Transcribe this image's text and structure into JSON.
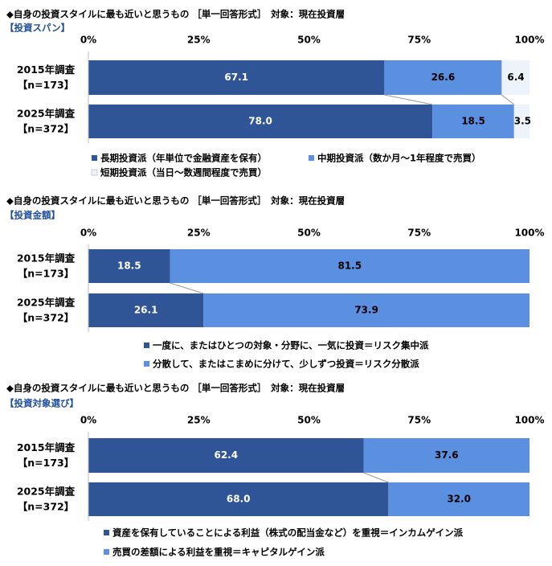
{
  "chart_data": [
    {
      "type": "stacked-bar-h",
      "title": "◆自身の投資スタイルに最も近いと思うもの ［単一回答形式］　対象：現在投資層",
      "subtitle": "【投資スパン】",
      "categories": [
        [
          "2015年調査",
          "【n=173】"
        ],
        [
          "2025年調査",
          "【n=372】"
        ]
      ],
      "xlim": [
        0,
        100
      ],
      "xticks": [
        {
          "value": 0,
          "label": "0%"
        },
        {
          "value": 25,
          "label": "25%"
        },
        {
          "value": 50,
          "label": "50%"
        },
        {
          "value": 75,
          "label": "75%"
        },
        {
          "value": 100,
          "label": "100%"
        }
      ],
      "series": [
        {
          "name": "長期投資派（年単位で金融資産を保有）",
          "color": "#2f5597",
          "values": [
            67.1,
            78.0
          ],
          "value_labels": [
            "67.1",
            "78.0"
          ]
        },
        {
          "name": "中期投資派（数か月～1年程度で売買）",
          "color": "#5b8fe0",
          "values": [
            26.6,
            18.5
          ],
          "value_labels": [
            "26.6",
            "18.5"
          ]
        },
        {
          "name": "短期投資派（当日～数週間程度で売買）",
          "color": "#eef2fa",
          "values": [
            6.4,
            3.5
          ],
          "value_labels": [
            "6.4",
            "3.5"
          ]
        }
      ]
    },
    {
      "type": "stacked-bar-h",
      "title": "◆自身の投資スタイルに最も近いと思うもの ［単一回答形式］　対象：現在投資層",
      "subtitle": "【投資金額】",
      "categories": [
        [
          "2015年調査",
          "【n=173】"
        ],
        [
          "2025年調査",
          "【n=372】"
        ]
      ],
      "xlim": [
        0,
        100
      ],
      "xticks": [
        {
          "value": 0,
          "label": "0%"
        },
        {
          "value": 25,
          "label": "25%"
        },
        {
          "value": 50,
          "label": "50%"
        },
        {
          "value": 75,
          "label": "75%"
        },
        {
          "value": 100,
          "label": "100%"
        }
      ],
      "series": [
        {
          "name": "一度に、またはひとつの対象・分野に、一気に投資＝リスク集中派",
          "color": "#2f5597",
          "values": [
            18.5,
            26.1
          ],
          "value_labels": [
            "18.5",
            "26.1"
          ]
        },
        {
          "name": "分散して、またはこまめに分けて、少しずつ投資＝リスク分散派",
          "color": "#5b8fe0",
          "values": [
            81.5,
            73.9
          ],
          "value_labels": [
            "81.5",
            "73.9"
          ]
        }
      ]
    },
    {
      "type": "stacked-bar-h",
      "title": "◆自身の投資スタイルに最も近いと思うもの ［単一回答形式］　対象：現在投資層",
      "subtitle": "【投資対象選び】",
      "categories": [
        [
          "2015年調査",
          "【n=173】"
        ],
        [
          "2025年調査",
          "【n=372】"
        ]
      ],
      "xlim": [
        0,
        100
      ],
      "xticks": [
        {
          "value": 0,
          "label": "0%"
        },
        {
          "value": 25,
          "label": "25%"
        },
        {
          "value": 50,
          "label": "50%"
        },
        {
          "value": 75,
          "label": "75%"
        },
        {
          "value": 100,
          "label": "100%"
        }
      ],
      "series": [
        {
          "name": "資産を保有していることによる利益（株式の配当金など）を重視＝インカムゲイン派",
          "color": "#2f5597",
          "values": [
            62.4,
            68.0
          ],
          "value_labels": [
            "62.4",
            "68.0"
          ]
        },
        {
          "name": "売買の差額による利益を重視＝キャピタルゲイン派",
          "color": "#5b8fe0",
          "values": [
            37.6,
            32.0
          ],
          "value_labels": [
            "37.6",
            "32.0"
          ]
        }
      ]
    }
  ]
}
